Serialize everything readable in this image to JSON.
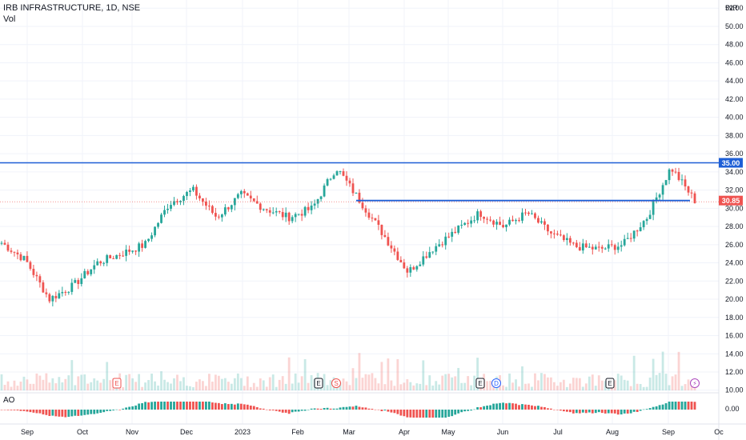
{
  "header": {
    "title": "IRB INFRASTRUCTURE, 1D, NSE",
    "volume_label": "Vol",
    "indicator_label": "AO"
  },
  "colors": {
    "up": "#26a69a",
    "down": "#ef5350",
    "level": "#1e5fd6",
    "price_tag": "#ef5350",
    "grid": "#f0f3fa"
  },
  "chart_data": {
    "type": "candlestick",
    "currency": "INR",
    "y_ticks": [
      "10.00",
      "12.00",
      "14.00",
      "16.00",
      "18.00",
      "20.00",
      "22.00",
      "24.00",
      "26.00",
      "28.00",
      "30.00",
      "32.00",
      "34.00",
      "36.00",
      "38.00",
      "40.00",
      "42.00",
      "44.00",
      "46.00",
      "48.00",
      "50.00",
      "52.00"
    ],
    "ylim": [
      9.8,
      52.9
    ],
    "x_ticks": [
      "Sep",
      "Oct",
      "Nov",
      "Dec",
      "2023",
      "Feb",
      "Mar",
      "Apr",
      "May",
      "Jun",
      "Jul",
      "Aug",
      "Sep",
      "Oc"
    ],
    "levels": [
      {
        "value": 35.0,
        "label": "35.00"
      },
      {
        "value": 30.85,
        "label": "30.85",
        "from_month": "Mar"
      }
    ],
    "last_price": "30.85",
    "ao_tick": "0.00",
    "event_markers": [
      {
        "kind": "E",
        "month": "Nov"
      },
      {
        "kind": "E",
        "month": "Feb"
      },
      {
        "kind": "S",
        "month": "Feb"
      },
      {
        "kind": "E",
        "month": "Jun"
      },
      {
        "kind": "D",
        "month": "Jun"
      },
      {
        "kind": "E",
        "month": "Aug"
      },
      {
        "kind": "⚡",
        "month": "Sep"
      }
    ],
    "price_path": [
      [
        "Sep",
        26.2
      ],
      [
        "Sep",
        24.3
      ],
      [
        "Oct",
        20.0
      ],
      [
        "Oct",
        21.5
      ],
      [
        "Nov",
        24.0
      ],
      [
        "Nov",
        25.0
      ],
      [
        "Dec",
        26.0
      ],
      [
        "Dec",
        30.5
      ],
      [
        "Dec",
        32.0
      ],
      [
        "2023",
        29.0
      ],
      [
        "2023",
        31.5
      ],
      [
        "2023",
        30.0
      ],
      [
        "Feb",
        29.0
      ],
      [
        "Feb",
        30.0
      ],
      [
        "Feb",
        34.5
      ],
      [
        "Mar",
        30.8
      ],
      [
        "Mar",
        27.0
      ],
      [
        "Apr",
        23.0
      ],
      [
        "Apr",
        25.5
      ],
      [
        "May",
        27.5
      ],
      [
        "May",
        29.5
      ],
      [
        "Jun",
        28.0
      ],
      [
        "Jun",
        29.5
      ],
      [
        "Jul",
        27.2
      ],
      [
        "Jul",
        25.8
      ],
      [
        "Aug",
        25.5
      ],
      [
        "Aug",
        26.0
      ],
      [
        "Sep",
        29.0
      ],
      [
        "Sep",
        34.5
      ],
      [
        "Sep",
        30.85
      ]
    ]
  }
}
